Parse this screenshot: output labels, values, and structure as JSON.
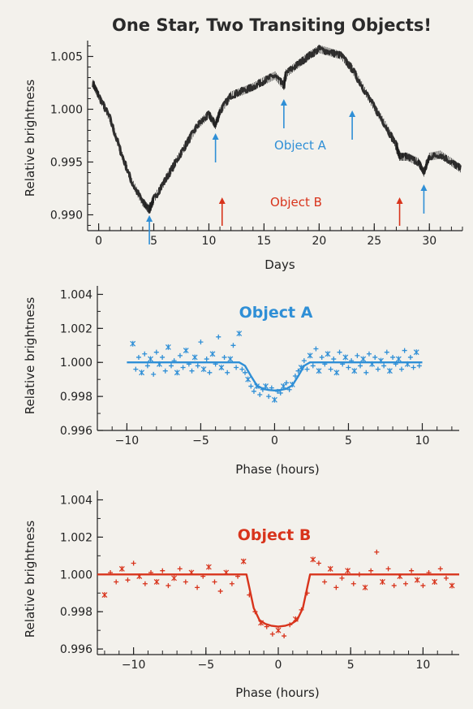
{
  "title": "One Star, Two Transiting Objects!",
  "colors": {
    "object_a": "#2f8fd6",
    "object_b": "#d8341c",
    "main": "#1a1a1a",
    "axis": "#222222"
  },
  "annotations": {
    "object_a_label": "Object A",
    "object_b_label": "Object B",
    "object_a_arrow_days": [
      4.6,
      10.6,
      16.8,
      23.0,
      29.5
    ],
    "object_b_arrow_days": [
      11.2,
      27.3
    ]
  },
  "chart_data": [
    {
      "type": "line",
      "title": "One Star, Two Transiting Objects!",
      "xlabel": "Days",
      "ylabel": "Relative brightness",
      "xlim": [
        -1,
        33
      ],
      "ylim": [
        0.9885,
        1.0065
      ],
      "xticks": [
        "0",
        "5",
        "10",
        "15",
        "20",
        "25",
        "30"
      ],
      "yticks": [
        "0.990",
        "0.995",
        "1.000",
        "1.005"
      ],
      "series": [
        {
          "x": [
            -0.5,
            0,
            1,
            2,
            3,
            4,
            4.6,
            5,
            6,
            7,
            8,
            9,
            10,
            10.6,
            11,
            12,
            13,
            14,
            15,
            16,
            16.8,
            17,
            18,
            19,
            20,
            21,
            22,
            23,
            24,
            25,
            26,
            27,
            27.3,
            28,
            29,
            29.5,
            30,
            31,
            32,
            32.8
          ],
          "y": [
            1.0024,
            1.0013,
            0.9992,
            0.996,
            0.9931,
            0.9912,
            0.9905,
            0.9915,
            0.9932,
            0.995,
            0.9968,
            0.9985,
            0.9995,
            0.9985,
            0.9998,
            1.0013,
            1.0017,
            1.0021,
            1.0027,
            1.0032,
            1.0022,
            1.0034,
            1.0042,
            1.005,
            1.0057,
            1.0054,
            1.0051,
            1.0038,
            1.002,
            1.0002,
            0.9985,
            0.9966,
            0.9955,
            0.9955,
            0.995,
            0.994,
            0.9955,
            0.9957,
            0.995,
            0.9944
          ]
        }
      ]
    },
    {
      "type": "scatter",
      "title": "Object A",
      "xlabel": "Phase (hours)",
      "ylabel": "Relative brightness",
      "xlim": [
        -12,
        12.5
      ],
      "ylim": [
        0.996,
        1.0045
      ],
      "xticks": [
        "−10",
        "−5",
        "0",
        "5",
        "10"
      ],
      "yticks": [
        "0.996",
        "0.998",
        "1.000",
        "1.002",
        "1.004"
      ],
      "model": {
        "x": [
          -10,
          -2.4,
          -2.0,
          -1.6,
          -1.2,
          -0.8,
          -0.4,
          0,
          0.4,
          0.8,
          1.2,
          1.6,
          2.0,
          2.4,
          10
        ],
        "y": [
          1.0,
          1.0,
          0.9998,
          0.9992,
          0.99865,
          0.99845,
          0.99838,
          0.99835,
          0.99838,
          0.99845,
          0.99865,
          0.9992,
          0.9998,
          1.0,
          1.0
        ]
      },
      "points": {
        "x": [
          -9.6,
          -9.4,
          -9.2,
          -9.0,
          -8.8,
          -8.6,
          -8.4,
          -8.2,
          -8.0,
          -7.8,
          -7.6,
          -7.4,
          -7.2,
          -7.0,
          -6.8,
          -6.6,
          -6.4,
          -6.2,
          -6.0,
          -5.8,
          -5.6,
          -5.4,
          -5.2,
          -5.0,
          -4.8,
          -4.6,
          -4.4,
          -4.2,
          -4.0,
          -3.8,
          -3.6,
          -3.4,
          -3.2,
          -3.0,
          -2.8,
          -2.6,
          -2.4,
          -2.2,
          -2.0,
          -1.8,
          -1.6,
          -1.4,
          -1.2,
          -1.0,
          -0.8,
          -0.6,
          -0.4,
          -0.2,
          0.0,
          0.2,
          0.4,
          0.6,
          0.8,
          1.0,
          1.2,
          1.4,
          1.6,
          1.8,
          2.0,
          2.2,
          2.4,
          2.6,
          2.8,
          3.0,
          3.2,
          3.4,
          3.6,
          3.8,
          4.0,
          4.2,
          4.4,
          4.6,
          4.8,
          5.0,
          5.2,
          5.4,
          5.6,
          5.8,
          6.0,
          6.2,
          6.4,
          6.6,
          6.8,
          7.0,
          7.2,
          7.4,
          7.6,
          7.8,
          8.0,
          8.2,
          8.4,
          8.6,
          8.8,
          9.0,
          9.2,
          9.4,
          9.6,
          9.8
        ],
        "y": [
          1.0011,
          0.9996,
          1.0003,
          0.9994,
          1.0005,
          0.9998,
          1.0002,
          0.9993,
          1.0006,
          0.9999,
          1.0003,
          0.9995,
          1.0009,
          0.9998,
          1.0001,
          0.9994,
          1.0004,
          0.9997,
          1.0007,
          0.9999,
          0.9995,
          1.0003,
          0.9998,
          1.0012,
          0.9996,
          1.0002,
          0.9994,
          1.0005,
          0.9999,
          1.0015,
          0.9997,
          1.0003,
          0.9994,
          1.0002,
          1.001,
          0.9997,
          1.0017,
          0.9996,
          0.9994,
          0.999,
          0.9986,
          0.9983,
          0.9986,
          0.9981,
          0.9984,
          0.9986,
          0.998,
          0.9985,
          0.9978,
          0.9983,
          0.9982,
          0.9986,
          0.9988,
          0.9984,
          0.9987,
          0.9992,
          0.9995,
          0.9997,
          1.0001,
          0.9996,
          1.0004,
          0.9998,
          1.0008,
          0.9995,
          1.0003,
          0.9999,
          1.0005,
          0.9996,
          1.0002,
          0.9994,
          1.0006,
          0.9999,
          1.0003,
          0.9997,
          1.0001,
          0.9995,
          1.0004,
          0.9998,
          1.0002,
          0.9994,
          1.0005,
          0.9999,
          1.0003,
          0.9996,
          1.0001,
          0.9998,
          1.0006,
          0.9995,
          1.0003,
          0.9999,
          1.0002,
          0.9996,
          1.0007,
          0.9999,
          1.0003,
          0.9997,
          1.0006,
          0.9998
        ]
      }
    },
    {
      "type": "scatter",
      "title": "Object B",
      "xlabel": "Phase (hours)",
      "ylabel": "Relative brightness",
      "xlim": [
        -12.5,
        12.5
      ],
      "ylim": [
        0.9957,
        1.0045
      ],
      "xticks": [
        "−10",
        "−5",
        "0",
        "5",
        "10"
      ],
      "yticks": [
        "0.996",
        "0.998",
        "1.000",
        "1.002",
        "1.004"
      ],
      "model": {
        "x": [
          -12.5,
          -2.2,
          -2.0,
          -1.7,
          -1.3,
          -0.9,
          -0.5,
          0,
          0.5,
          0.9,
          1.3,
          1.7,
          2.0,
          2.2,
          12.5
        ],
        "y": [
          1.0,
          1.0,
          0.9993,
          0.9982,
          0.99755,
          0.99735,
          0.99725,
          0.9972,
          0.99725,
          0.99735,
          0.99755,
          0.9982,
          0.9993,
          1.0,
          1.0
        ]
      },
      "points": {
        "x": [
          -12.0,
          -11.6,
          -11.2,
          -10.8,
          -10.4,
          -10.0,
          -9.6,
          -9.2,
          -8.8,
          -8.4,
          -8.0,
          -7.6,
          -7.2,
          -6.8,
          -6.4,
          -6.0,
          -5.6,
          -5.2,
          -4.8,
          -4.4,
          -4.0,
          -3.6,
          -3.2,
          -2.8,
          -2.4,
          -2.0,
          -1.6,
          -1.2,
          -0.8,
          -0.4,
          0.0,
          0.4,
          0.8,
          1.2,
          1.6,
          2.0,
          2.4,
          2.8,
          3.2,
          3.6,
          4.0,
          4.4,
          4.8,
          5.2,
          5.6,
          6.0,
          6.4,
          6.8,
          7.2,
          7.6,
          8.0,
          8.4,
          8.8,
          9.2,
          9.6,
          10.0,
          10.4,
          10.8,
          11.2,
          11.6,
          12.0
        ],
        "y": [
          0.9989,
          1.0001,
          0.9996,
          1.0003,
          0.9997,
          1.0006,
          0.9999,
          0.9995,
          1.0001,
          0.9996,
          1.0002,
          0.9994,
          0.9998,
          1.0003,
          0.9996,
          1.0001,
          0.9993,
          0.9999,
          1.0004,
          0.9996,
          0.9991,
          1.0001,
          0.9995,
          0.9999,
          1.0007,
          0.9989,
          0.998,
          0.9974,
          0.9972,
          0.9968,
          0.997,
          0.9967,
          0.9973,
          0.9976,
          0.9981,
          0.999,
          1.0008,
          1.0006,
          0.9996,
          1.0003,
          0.9993,
          0.9998,
          1.0002,
          0.9995,
          1.0,
          0.9993,
          1.0002,
          1.0012,
          0.9996,
          1.0003,
          0.9994,
          0.9999,
          0.9995,
          1.0002,
          0.9997,
          0.9994,
          1.0001,
          0.9996,
          1.0003,
          0.9998,
          0.9994
        ]
      }
    }
  ]
}
